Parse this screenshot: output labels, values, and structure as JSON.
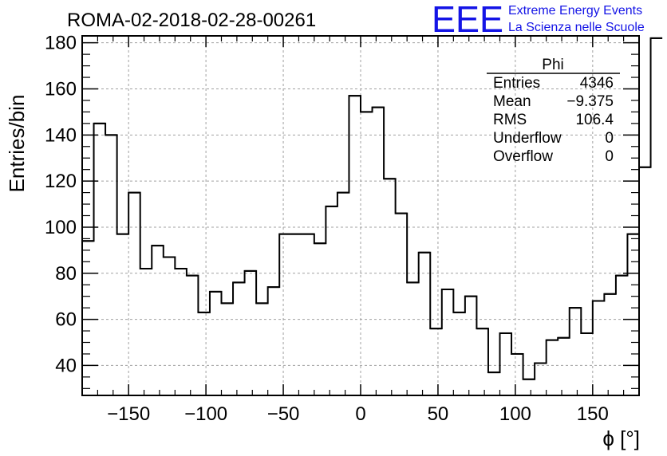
{
  "header": {
    "run_title": "ROMA-02-2018-02-28-00261",
    "logo_text": "EEE",
    "logo_line1": "Extreme Energy Events",
    "logo_line2": "La Scienza nelle Scuole"
  },
  "stats": {
    "title": "Phi",
    "rows": [
      {
        "label": "Entries",
        "value": "4346"
      },
      {
        "label": "Mean",
        "value": "−9.375"
      },
      {
        "label": "RMS",
        "value": "106.4"
      },
      {
        "label": "Underflow",
        "value": "0"
      },
      {
        "label": "Overflow",
        "value": "0"
      }
    ]
  },
  "colors": {
    "logo_blue": "#1414e6",
    "line": "#000000",
    "grid": "#a0a0a0"
  },
  "chart_data": {
    "type": "histogram",
    "xlabel": "ϕ [°]",
    "ylabel": "Entries/bin",
    "xlim": [
      -180,
      180
    ],
    "ylim": [
      27,
      183
    ],
    "grid": true,
    "bin_edges_start": -180,
    "bin_width": 7.5,
    "values": [
      94,
      145,
      140,
      97,
      115,
      82,
      92,
      87,
      82,
      79,
      63,
      72,
      67,
      76,
      81,
      67,
      74,
      97,
      97,
      97,
      93,
      109,
      115,
      157,
      150,
      152,
      121,
      106,
      76,
      89,
      56,
      73,
      63,
      70,
      56,
      37,
      54,
      45,
      34,
      41,
      51,
      52,
      65,
      54,
      68,
      71,
      79,
      97,
      126,
      182
    ],
    "xticks": [
      -150,
      -100,
      -50,
      0,
      50,
      100,
      150
    ],
    "xtick_labels": [
      "−150",
      "−100",
      "−50",
      "0",
      "50",
      "100",
      "150"
    ],
    "yticks": [
      40,
      60,
      80,
      100,
      120,
      140,
      160,
      180
    ],
    "ytick_labels": [
      "40",
      "60",
      "80",
      "100",
      "120",
      "140",
      "160",
      "180"
    ]
  }
}
